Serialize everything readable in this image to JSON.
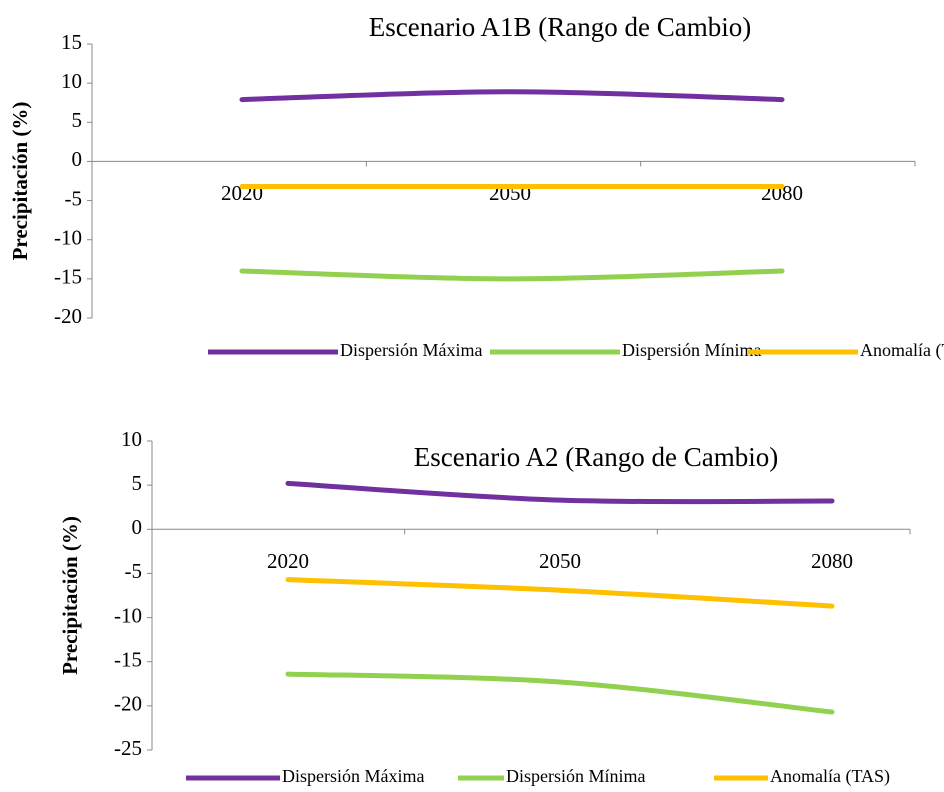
{
  "chart_data": [
    {
      "type": "line",
      "title": "Escenario A1B (Rango de Cambio)",
      "y_label": "Precipitación (%)",
      "categories": [
        "2020",
        "2050",
        "2080"
      ],
      "series": [
        {
          "name": "Dispersión Máxima",
          "color": "#7030a0",
          "values": [
            7.9,
            8.9,
            7.9
          ]
        },
        {
          "name": "Dispersión Mínima",
          "color": "#92d050",
          "values": [
            -14,
            -15,
            -14
          ]
        },
        {
          "name": "Anomalía (TAS)",
          "color": "#ffc000",
          "values": [
            -3.2,
            -3.2,
            -3.2
          ]
        }
      ],
      "ylim": [
        -20,
        15
      ],
      "yticks": [
        -20,
        -15,
        -10,
        -5,
        0,
        5,
        10,
        15
      ],
      "legend": "bottom"
    },
    {
      "type": "line",
      "title": "Escenario A2 (Rango de Cambio)",
      "y_label": "Precipitación (%)",
      "categories": [
        "2020",
        "2050",
        "2080"
      ],
      "series": [
        {
          "name": "Dispersión Máxima",
          "color": "#7030a0",
          "values": [
            5.2,
            3.3,
            3.2
          ]
        },
        {
          "name": "Dispersión Mínima",
          "color": "#92d050",
          "values": [
            -16.4,
            -17.3,
            -20.7
          ]
        },
        {
          "name": "Anomalía (TAS)",
          "color": "#ffc000",
          "values": [
            -5.7,
            -6.9,
            -8.7
          ]
        }
      ],
      "ylim": [
        -25,
        10
      ],
      "yticks": [
        -25,
        -20,
        -15,
        -10,
        -5,
        0,
        5,
        10
      ],
      "legend": "bottom"
    }
  ]
}
